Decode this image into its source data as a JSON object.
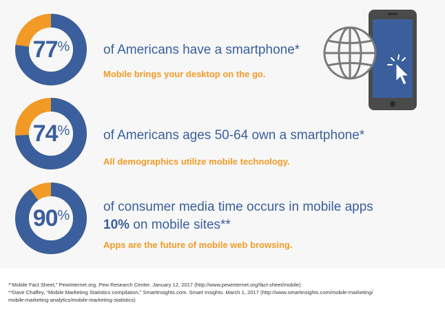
{
  "stats": [
    {
      "number": "77",
      "symbol": "%",
      "value": 77,
      "headline": "of Americans have a smartphone*",
      "tagline": "Mobile brings your desktop on the go."
    },
    {
      "number": "74",
      "symbol": "%",
      "value": 74,
      "headline": "of Americans ages 50-64 own a smartphone*",
      "tagline": "All demographics utilize mobile technology."
    },
    {
      "number": "90",
      "symbol": "%",
      "value": 90,
      "headline_line1": "of consumer media time occurs in mobile apps",
      "headline_line2_bold": "10%",
      "headline_line2_rest": " on mobile sites**",
      "tagline": "Apps are the future of mobile web browsing."
    }
  ],
  "colors": {
    "blue": "#3a5f9c",
    "orange": "#f29a26"
  },
  "icons": [
    "globe-icon",
    "smartphone-icon",
    "cursor-click-icon"
  ],
  "footnotes": [
    "*“Mobile Fact Sheet,” PewInternet.org. Pew Research Center. January 12, 2017 (http://www.pewinternet.org/fact-sheet/mobile)",
    "**Dave Chaffey, “Mobile Marketing Statistics compilation,” SmartInsights.com. Smart Insights. March 1, 2017 (http://www.smartinsights.com/mobile-marketing/",
    "mobile-marketing-analytics/mobile-marketing-statistics)"
  ]
}
